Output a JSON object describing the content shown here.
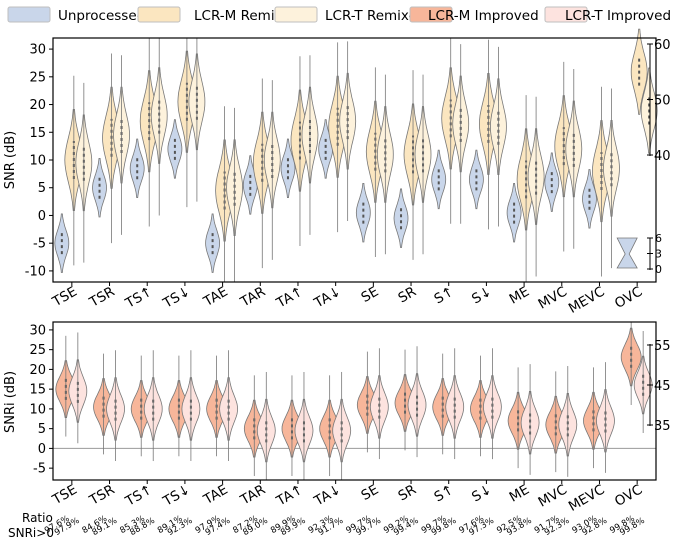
{
  "legend": {
    "items": [
      {
        "label": "Unprocessed",
        "color": "#c9d6ea"
      },
      {
        "label": "LCR-M Remixed",
        "color": "#fbe6c0"
      },
      {
        "label": "LCR-T Remixed",
        "color": "#fdf2dc"
      },
      {
        "label": "LCR-M Improved",
        "color": "#f7b69a"
      },
      {
        "label": "LCR-T Improved",
        "color": "#fde3df"
      }
    ]
  },
  "ratio_label": {
    "line1": "Ratio",
    "line2": "SNRi>0"
  },
  "chart_data": [
    {
      "type": "violin",
      "ylabel": "SNR (dB)",
      "ylim": [
        -12,
        32
      ],
      "yticks": [
        -10,
        -5,
        0,
        5,
        10,
        15,
        20,
        25,
        30
      ],
      "categories": [
        "TSE",
        "TSR",
        "TS↑",
        "TS↓",
        "TAE",
        "TAR",
        "TA↑",
        "TA↓",
        "SE",
        "SR",
        "S↑",
        "S↓",
        "ME",
        "MVC",
        "MEVC",
        "OVC"
      ],
      "series": [
        {
          "name": "Unprocessed",
          "color": "#c9d6ea",
          "medians": [
            -5,
            5,
            8.5,
            12,
            -5,
            5.5,
            8.5,
            12,
            0.5,
            -0.5,
            6.5,
            6.5,
            0.5,
            6,
            3,
            null
          ]
        },
        {
          "name": "LCR-M Remixed",
          "color": "#fbe6c0",
          "medians": [
            10,
            14,
            17,
            20.5,
            4.5,
            9.5,
            13.5,
            16,
            11.5,
            11,
            17.5,
            16.5,
            6.5,
            12.5,
            8,
            55
          ]
        },
        {
          "name": "LCR-T Remixed",
          "color": "#fdf2dc",
          "medians": [
            9.5,
            14.5,
            18,
            20.5,
            5,
            10,
            14.5,
            17,
            11,
            11,
            16.5,
            16,
            7,
            12,
            8.5,
            48
          ]
        }
      ],
      "ovc_right_axis": {
        "upper_ticks": [
          40,
          50,
          60
        ],
        "lower_ticks": [
          0,
          3,
          6
        ]
      }
    },
    {
      "type": "violin",
      "ylabel": "SNRi (dB)",
      "ylim": [
        -8,
        32
      ],
      "yticks": [
        -5,
        0,
        5,
        10,
        15,
        20,
        25,
        30
      ],
      "categories": [
        "TSE",
        "TSR",
        "TS↑",
        "TS↓",
        "TAE",
        "TAR",
        "TA↑",
        "TA↓",
        "SE",
        "SR",
        "S↑",
        "S↓",
        "ME",
        "MVC",
        "MEVC",
        "OVC"
      ],
      "series": [
        {
          "name": "LCR-M Improved",
          "color": "#f7b69a",
          "medians": [
            15,
            10.5,
            10,
            10,
            10,
            5,
            5,
            5,
            11,
            11.5,
            10.5,
            10,
            7,
            6,
            7,
            52
          ]
        },
        {
          "name": "LCR-T Improved",
          "color": "#fde3df",
          "medians": [
            14.5,
            10,
            10,
            10,
            10,
            4.5,
            4.5,
            4.5,
            10.5,
            11,
            10.5,
            10.5,
            6.5,
            6,
            7,
            45
          ]
        }
      ],
      "ovc_right_axis": {
        "ticks": [
          35,
          45,
          55
        ]
      },
      "ratio_snri_positive": [
        [
          "97.6%",
          "97.9%"
        ],
        [
          "84.6%",
          "89.1%"
        ],
        [
          "85.3%",
          "88.8%"
        ],
        [
          "89.1%",
          "92.3%"
        ],
        [
          "97.9%",
          "97.4%"
        ],
        [
          "87.2%",
          "89.0%"
        ],
        [
          "89.9%",
          "89.9%"
        ],
        [
          "92.3%",
          "91.7%"
        ],
        [
          "99.7%",
          "99.7%"
        ],
        [
          "99.2%",
          "99.4%"
        ],
        [
          "99.7%",
          "99.8%"
        ],
        [
          "97.6%",
          "97.3%"
        ],
        [
          "92.5%",
          "93.8%"
        ],
        [
          "91.7%",
          "92.3%"
        ],
        [
          "93.0%",
          "92.8%"
        ],
        [
          "99.8%",
          "99.8%"
        ]
      ]
    }
  ]
}
